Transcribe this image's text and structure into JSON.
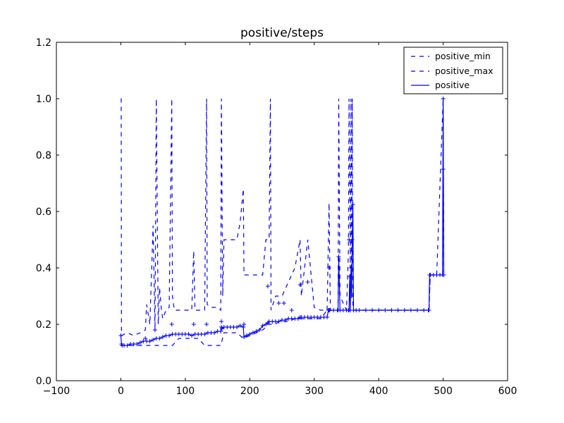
{
  "chart_data": {
    "type": "line",
    "title": "positive/steps",
    "xlabel": "",
    "ylabel": "",
    "xlim": [
      -100,
      600
    ],
    "ylim": [
      0.0,
      1.2
    ],
    "x_ticks": [
      -100,
      0,
      100,
      200,
      300,
      400,
      500,
      600
    ],
    "y_ticks": [
      0.0,
      0.2,
      0.4,
      0.6,
      0.8,
      1.0,
      1.2
    ],
    "x_tick_labels": [
      "−100",
      "0",
      "100",
      "200",
      "300",
      "400",
      "500",
      "600"
    ],
    "y_tick_labels": [
      "0.0",
      "0.2",
      "0.4",
      "0.6",
      "0.8",
      "1.0",
      "1.2"
    ],
    "grid": false,
    "legend_position": "top-right",
    "color": "#0000ff",
    "series": [
      {
        "name": "positive_min",
        "style": "dashed",
        "x": [
          0,
          10,
          20,
          30,
          38,
          40,
          45,
          50,
          55,
          60,
          65,
          70,
          75,
          80,
          90,
          100,
          110,
          120,
          130,
          140,
          150,
          155,
          160,
          170,
          180,
          190,
          200,
          210,
          220,
          225,
          228,
          230,
          240,
          245,
          250,
          260,
          270,
          278,
          280,
          290,
          300,
          310,
          320,
          325,
          330,
          338,
          340,
          350,
          354,
          356,
          360,
          380,
          400,
          420,
          440,
          460,
          478,
          480,
          490,
          500,
          501
        ],
        "y": [
          0.125,
          0.125,
          0.125,
          0.125,
          0.125,
          0.125,
          0.125,
          0.125,
          0.125,
          0.125,
          0.125,
          0.125,
          0.125,
          0.125,
          0.15,
          0.15,
          0.15,
          0.15,
          0.125,
          0.125,
          0.125,
          0.125,
          0.17,
          0.17,
          0.17,
          0.15,
          0.16,
          0.17,
          0.18,
          0.19,
          0.2,
          0.2,
          0.2,
          0.21,
          0.21,
          0.21,
          0.22,
          0.22,
          0.22,
          0.22,
          0.22,
          0.22,
          0.25,
          0.25,
          0.25,
          0.25,
          0.25,
          0.25,
          0.25,
          0.25,
          0.25,
          0.25,
          0.25,
          0.25,
          0.25,
          0.25,
          0.25,
          0.375,
          0.375,
          0.375,
          0.375
        ]
      },
      {
        "name": "positive_max",
        "style": "dashed",
        "x": [
          0,
          0.5,
          1,
          10,
          20,
          30,
          38,
          40,
          45,
          50,
          53,
          55,
          58,
          60,
          63,
          65,
          70,
          75,
          79,
          80,
          83,
          90,
          100,
          110,
          113,
          115,
          120,
          130,
          133,
          134,
          140,
          150,
          155,
          156,
          158,
          160,
          170,
          180,
          185,
          190,
          191,
          200,
          210,
          220,
          225,
          230,
          232,
          233,
          240,
          250,
          260,
          270,
          278,
          280,
          290,
          300,
          310,
          320,
          323,
          325,
          330,
          337,
          338,
          340,
          350,
          353,
          354,
          356,
          357,
          358,
          359,
          360,
          362,
          380,
          400,
          420,
          440,
          460,
          478,
          480,
          490,
          500,
          501
        ],
        "y": [
          1.0,
          1.0,
          0.16,
          0.17,
          0.16,
          0.17,
          0.18,
          0.27,
          0.2,
          0.55,
          0.18,
          1.0,
          0.2,
          0.33,
          0.25,
          0.22,
          0.25,
          0.26,
          1.0,
          0.3,
          0.25,
          0.25,
          0.25,
          0.25,
          0.46,
          0.25,
          0.25,
          0.25,
          1.0,
          0.27,
          0.26,
          0.26,
          0.25,
          1.0,
          0.3,
          0.5,
          0.5,
          0.5,
          0.56,
          0.68,
          0.375,
          0.375,
          0.375,
          0.375,
          0.5,
          0.5,
          1.0,
          0.25,
          0.3,
          0.3,
          0.35,
          0.4,
          0.5,
          0.3,
          0.5,
          0.26,
          0.25,
          0.25,
          0.63,
          0.25,
          0.25,
          0.25,
          1.0,
          0.3,
          0.25,
          0.45,
          1.0,
          0.4,
          1.0,
          0.3,
          1.0,
          0.25,
          0.25,
          0.25,
          0.25,
          0.25,
          0.25,
          0.25,
          0.25,
          0.375,
          0.375,
          1.0,
          0.375
        ]
      },
      {
        "name": "positive",
        "style": "solid",
        "x": [
          0,
          1,
          2,
          5,
          10,
          15,
          20,
          25,
          30,
          35,
          40,
          45,
          50,
          55,
          60,
          65,
          70,
          75,
          80,
          85,
          90,
          95,
          100,
          105,
          110,
          115,
          120,
          125,
          130,
          135,
          140,
          145,
          150,
          155,
          156,
          157,
          160,
          165,
          170,
          175,
          180,
          185,
          190,
          191,
          195,
          200,
          205,
          210,
          215,
          220,
          225,
          228,
          230,
          235,
          240,
          245,
          250,
          255,
          260,
          265,
          270,
          275,
          278,
          280,
          285,
          290,
          295,
          300,
          305,
          310,
          315,
          320,
          322,
          323,
          324,
          330,
          336,
          337,
          338,
          340,
          345,
          350,
          353,
          354,
          355,
          356,
          357,
          358,
          359,
          360,
          361,
          365,
          370,
          380,
          390,
          400,
          410,
          420,
          430,
          440,
          450,
          460,
          470,
          477,
          478,
          479,
          480,
          485,
          490,
          495,
          499,
          500,
          501
        ],
        "y": [
          0.16,
          0.13,
          0.125,
          0.125,
          0.125,
          0.13,
          0.13,
          0.13,
          0.135,
          0.14,
          0.14,
          0.14,
          0.145,
          0.15,
          0.15,
          0.155,
          0.16,
          0.16,
          0.165,
          0.165,
          0.165,
          0.165,
          0.165,
          0.165,
          0.16,
          0.165,
          0.165,
          0.165,
          0.165,
          0.17,
          0.17,
          0.17,
          0.175,
          0.175,
          0.19,
          0.185,
          0.19,
          0.19,
          0.19,
          0.19,
          0.19,
          0.195,
          0.19,
          0.155,
          0.16,
          0.165,
          0.17,
          0.175,
          0.18,
          0.195,
          0.2,
          0.205,
          0.21,
          0.21,
          0.21,
          0.21,
          0.215,
          0.215,
          0.22,
          0.22,
          0.22,
          0.22,
          0.225,
          0.225,
          0.225,
          0.225,
          0.225,
          0.225,
          0.225,
          0.225,
          0.225,
          0.225,
          0.25,
          0.25,
          0.25,
          0.25,
          0.25,
          0.25,
          0.44,
          0.25,
          0.25,
          0.25,
          0.25,
          0.25,
          0.37,
          0.25,
          0.4,
          0.3,
          0.5,
          0.625,
          0.25,
          0.25,
          0.25,
          0.25,
          0.25,
          0.25,
          0.25,
          0.25,
          0.25,
          0.25,
          0.25,
          0.25,
          0.25,
          0.25,
          0.25,
          0.375,
          0.375,
          0.375,
          0.375,
          0.375,
          0.375,
          1.0,
          0.375
        ]
      }
    ],
    "spike_markers": [
      {
        "x": 0,
        "y": 0.16
      },
      {
        "x": 38,
        "y": 0.15
      },
      {
        "x": 53,
        "y": 0.18
      },
      {
        "x": 79,
        "y": 0.2
      },
      {
        "x": 113,
        "y": 0.2
      },
      {
        "x": 133,
        "y": 0.2
      },
      {
        "x": 156,
        "y": 0.21
      },
      {
        "x": 191,
        "y": 0.2
      },
      {
        "x": 228,
        "y": 0.335
      },
      {
        "x": 245,
        "y": 0.275
      },
      {
        "x": 253,
        "y": 0.275
      },
      {
        "x": 265,
        "y": 0.25
      },
      {
        "x": 278,
        "y": 0.34
      },
      {
        "x": 290,
        "y": 0.35
      },
      {
        "x": 323,
        "y": 0.4
      },
      {
        "x": 338,
        "y": 0.44
      },
      {
        "x": 354,
        "y": 0.5
      },
      {
        "x": 356,
        "y": 0.37
      },
      {
        "x": 360,
        "y": 0.625
      },
      {
        "x": 500,
        "y": 1.0
      },
      {
        "x": 500,
        "y": 0.75
      },
      {
        "x": 480,
        "y": 0.375
      }
    ]
  }
}
